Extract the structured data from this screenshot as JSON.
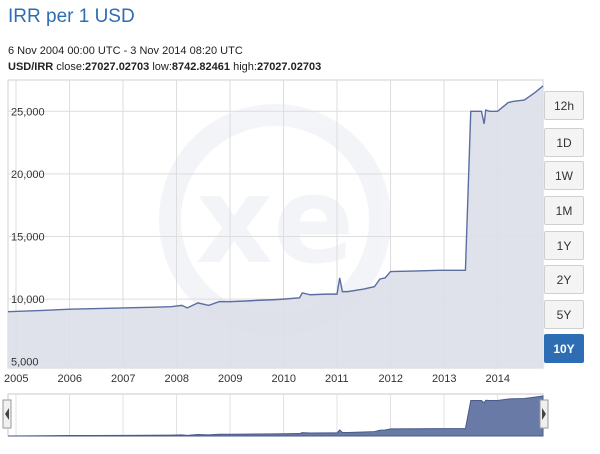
{
  "header": {
    "title": "IRR per 1 USD",
    "date_range": "6 Nov 2004 00:00 UTC - 3 Nov 2014 08:20 UTC",
    "pair_label": "USD/IRR",
    "close_label": "close:",
    "close_value": "27027.02703",
    "low_label": "low:",
    "low_value": "8742.82461",
    "high_label": "high:",
    "high_value": "27027.02703"
  },
  "range_buttons": [
    {
      "label": "12h",
      "active": false
    },
    {
      "label": "1D",
      "active": false
    },
    {
      "label": "1W",
      "active": false
    },
    {
      "label": "1M",
      "active": false
    },
    {
      "label": "1Y",
      "active": false
    },
    {
      "label": "2Y",
      "active": false
    },
    {
      "label": "5Y",
      "active": false
    },
    {
      "label": "10Y",
      "active": true
    }
  ],
  "colors": {
    "line": "#5b6ea2",
    "fill": "#dcdfe8",
    "nav_fill": "#6a7aa6",
    "accent": "#2d6db4"
  },
  "chart_data": {
    "type": "area",
    "title": "IRR per 1 USD",
    "ylim": [
      4500,
      27500
    ],
    "xlim": [
      2004.85,
      2014.85
    ],
    "y_ticks": [
      5000,
      10000,
      15000,
      20000,
      25000
    ],
    "y_tick_labels": [
      "5,000",
      "10,000",
      "15,000",
      "20,000",
      "25,000"
    ],
    "x_ticks": [
      2005,
      2006,
      2007,
      2008,
      2009,
      2010,
      2011,
      2012,
      2013,
      2014
    ],
    "x_tick_labels": [
      "2005",
      "2006",
      "2007",
      "2008",
      "2009",
      "2010",
      "2011",
      "2012",
      "2013",
      "2014"
    ],
    "grid": true,
    "series": [
      {
        "x": [
          2004.85,
          2005.5,
          2006.0,
          2006.5,
          2007.0,
          2007.5,
          2007.9,
          2008.1,
          2008.2,
          2008.4,
          2008.6,
          2008.8,
          2009.0,
          2009.3,
          2009.5,
          2009.8,
          2010.0,
          2010.3,
          2010.35,
          2010.5,
          2010.8,
          2011.0,
          2011.05,
          2011.1,
          2011.2,
          2011.5,
          2011.7,
          2011.8,
          2011.9,
          2012.0,
          2012.5,
          2012.9,
          2013.0,
          2013.4,
          2013.5,
          2013.7,
          2013.75,
          2013.78,
          2013.85,
          2014.0,
          2014.2,
          2014.3,
          2014.5,
          2014.7,
          2014.85
        ],
        "y": [
          9000,
          9100,
          9200,
          9250,
          9300,
          9350,
          9400,
          9500,
          9300,
          9700,
          9500,
          9800,
          9800,
          9850,
          9900,
          9950,
          10000,
          10100,
          10500,
          10350,
          10400,
          10400,
          11700,
          10600,
          10600,
          10800,
          11000,
          11600,
          11700,
          12200,
          12250,
          12300,
          12300,
          12300,
          25000,
          25000,
          24000,
          25100,
          25000,
          25000,
          25700,
          25800,
          25900,
          26500,
          27027
        ]
      }
    ]
  }
}
